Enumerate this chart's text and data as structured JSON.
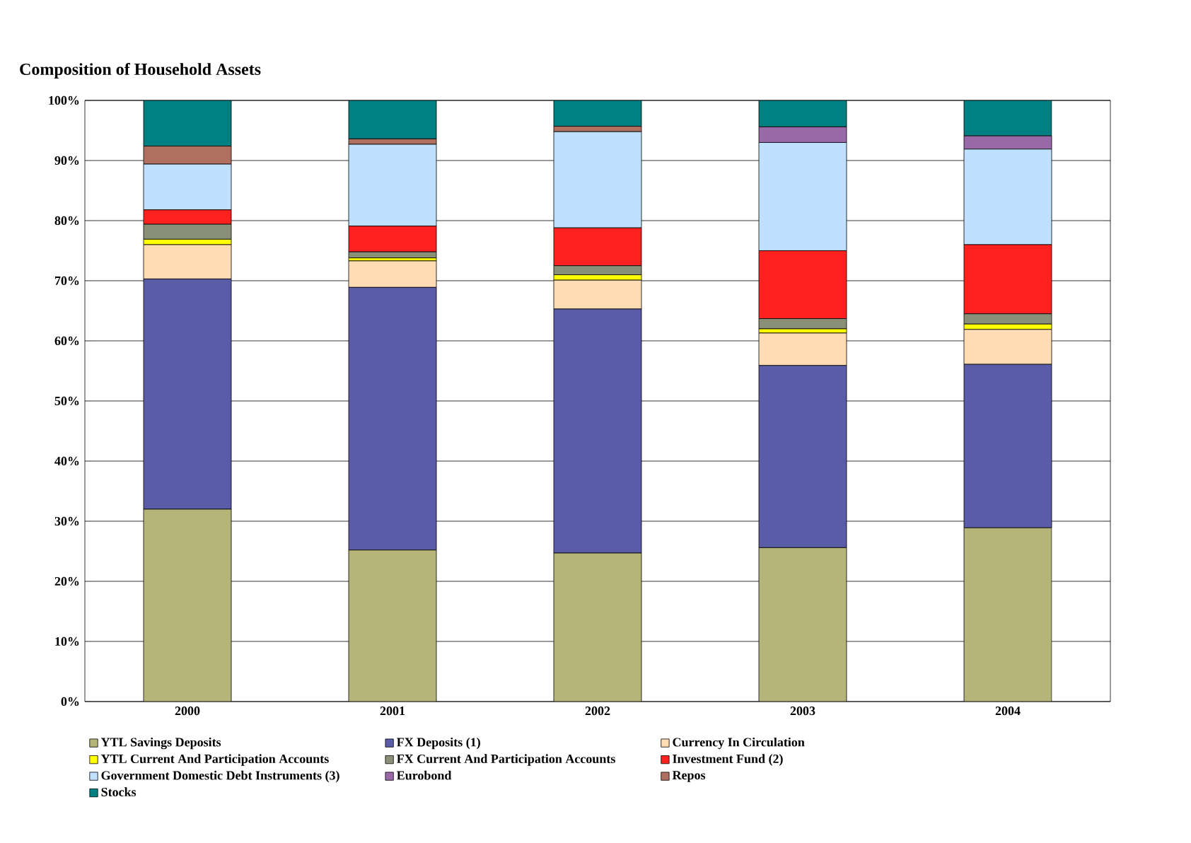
{
  "chart_data": {
    "type": "bar",
    "stacked": true,
    "title": "Composition of Household Assets",
    "categories": [
      "2000",
      "2001",
      "2002",
      "2003",
      "2004"
    ],
    "series": [
      {
        "name": "YTL Savings Deposits",
        "color": "#b5b57a",
        "values": [
          32.0,
          25.2,
          24.7,
          25.6,
          28.9
        ]
      },
      {
        "name": "FX Deposits (1)",
        "color": "#5a5ca8",
        "values": [
          38.3,
          43.7,
          40.6,
          30.3,
          27.2
        ]
      },
      {
        "name": "Currency In Circulation",
        "color": "#ffdcb4",
        "values": [
          5.7,
          4.4,
          4.8,
          5.4,
          5.8
        ]
      },
      {
        "name": "YTL Current And Participation Accounts",
        "color": "#ffff00",
        "values": [
          0.9,
          0.5,
          0.9,
          0.7,
          0.9
        ]
      },
      {
        "name": "FX Current And Participation Accounts",
        "color": "#8a8f78",
        "values": [
          2.5,
          1.0,
          1.5,
          1.7,
          1.7
        ]
      },
      {
        "name": "Investment Fund (2)",
        "color": "#ff2020",
        "values": [
          2.4,
          4.3,
          6.3,
          11.3,
          11.5
        ]
      },
      {
        "name": "Government Domestic Debt Instruments (3)",
        "color": "#bfe0ff",
        "values": [
          7.6,
          13.6,
          16.0,
          18.0,
          15.9
        ]
      },
      {
        "name": "Eurobond",
        "color": "#9a6aa8",
        "values": [
          0,
          0,
          0,
          2.6,
          2.2
        ]
      },
      {
        "name": "Repos",
        "color": "#b07060",
        "values": [
          3.0,
          0.9,
          0.9,
          0,
          0
        ]
      },
      {
        "name": "Stocks",
        "color": "#008080",
        "values": [
          7.6,
          6.4,
          4.3,
          4.4,
          5.9
        ]
      }
    ],
    "ylim": [
      0,
      100
    ],
    "yticks": [
      {
        "value": 0,
        "label": "0%"
      },
      {
        "value": 10,
        "label": "10%"
      },
      {
        "value": 20,
        "label": "20%"
      },
      {
        "value": 30,
        "label": "30%"
      },
      {
        "value": 40,
        "label": "40%"
      },
      {
        "value": 50,
        "label": "50%"
      },
      {
        "value": 60,
        "label": "60%"
      },
      {
        "value": 70,
        "label": "70%"
      },
      {
        "value": 80,
        "label": "80%"
      },
      {
        "value": 90,
        "label": "90%"
      },
      {
        "value": 100,
        "label": "100%"
      }
    ],
    "grid": "y",
    "legend": "bottom"
  }
}
